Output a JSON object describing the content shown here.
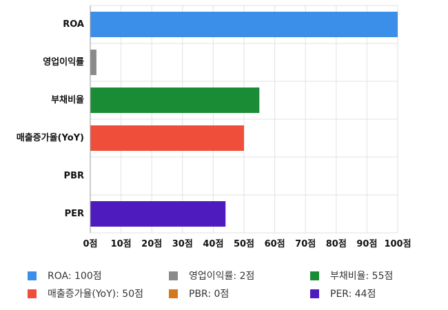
{
  "chart_data": {
    "type": "bar",
    "orientation": "horizontal",
    "categories": [
      "ROA",
      "영업이익률",
      "부채비율",
      "매출증가율(YoY)",
      "PBR",
      "PER"
    ],
    "values": [
      100,
      2,
      55,
      50,
      0,
      44
    ],
    "colors": [
      "#3b8fe8",
      "#8a8a8a",
      "#1a8c35",
      "#ef4f3a",
      "#d2781e",
      "#4e1bbf"
    ],
    "xlim": [
      0,
      100
    ],
    "xticks": [
      0,
      10,
      20,
      30,
      40,
      50,
      60,
      70,
      80,
      90,
      100
    ],
    "tick_suffix": "점",
    "grid": true,
    "legend_position": "bottom",
    "legend": [
      {
        "label": "ROA: 100점",
        "color": "#3b8fe8"
      },
      {
        "label": "영업이익률: 2점",
        "color": "#8a8a8a"
      },
      {
        "label": "부채비율: 55점",
        "color": "#1a8c35"
      },
      {
        "label": "매출증가율(YoY): 50점",
        "color": "#ef4f3a"
      },
      {
        "label": "PBR: 0점",
        "color": "#d2781e"
      },
      {
        "label": "PER: 44점",
        "color": "#4e1bbf"
      }
    ]
  }
}
